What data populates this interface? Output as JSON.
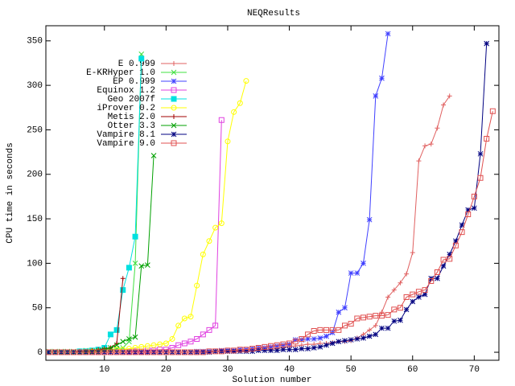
{
  "chart_data": {
    "type": "line",
    "title": "NEQResults",
    "xlabel": "Solution number",
    "ylabel": "CPU time in seconds",
    "x": [
      1,
      2,
      3,
      4,
      5,
      6,
      7,
      8,
      9,
      10,
      11,
      12,
      13,
      14,
      15,
      16,
      17,
      18,
      19,
      20,
      21,
      22,
      23,
      24,
      25,
      26,
      27,
      28,
      29,
      30,
      31,
      32,
      33,
      34,
      35,
      36,
      37,
      38,
      39,
      40,
      41,
      42,
      43,
      44,
      45,
      46,
      47,
      48,
      49,
      50,
      51,
      52,
      53,
      54,
      55,
      56,
      57,
      58,
      59,
      60,
      61,
      62,
      63,
      64,
      65,
      66,
      67,
      68,
      69,
      70,
      71,
      72,
      73
    ],
    "xlim": [
      0.5,
      74
    ],
    "xticks": [
      10,
      20,
      30,
      40,
      50,
      60,
      70
    ],
    "ylim": [
      -9,
      367
    ],
    "yticks": [
      0,
      50,
      100,
      150,
      200,
      250,
      300,
      350
    ],
    "series": [
      {
        "name": "E 0.999",
        "color": "#e06060",
        "marker": "plus",
        "values": [
          0,
          0,
          0,
          0,
          0,
          0,
          0,
          0,
          0,
          0,
          0,
          0,
          0,
          0,
          0,
          0,
          0,
          0,
          0,
          0,
          0,
          0,
          0,
          0,
          0,
          0,
          0,
          1,
          1,
          1,
          1,
          2,
          2,
          2,
          3,
          3,
          3,
          4,
          5,
          6,
          7,
          8,
          9,
          9,
          10,
          10,
          11,
          12,
          12,
          13,
          16,
          20,
          25,
          30,
          45,
          62,
          70,
          78,
          88,
          112,
          215,
          232,
          234,
          252,
          278,
          288,
          null,
          null,
          null,
          null,
          null,
          null,
          null
        ]
      },
      {
        "name": "E-KRHyper 1.0",
        "color": "#40e040",
        "marker": "cross",
        "values": [
          1,
          1,
          1,
          1,
          1,
          1,
          2,
          2,
          2,
          3,
          3,
          4,
          5,
          12,
          100,
          335,
          null,
          null,
          null,
          null,
          null,
          null,
          null,
          null,
          null,
          null,
          null,
          null,
          null,
          null,
          null,
          null,
          null,
          null,
          null,
          null,
          null,
          null,
          null,
          null,
          null,
          null,
          null,
          null,
          null,
          null,
          null,
          null,
          null,
          null,
          null,
          null,
          null,
          null,
          null,
          null,
          null,
          null,
          null,
          null,
          null,
          null,
          null,
          null,
          null,
          null,
          null,
          null,
          null,
          null,
          null,
          null,
          null
        ]
      },
      {
        "name": "EP 0.999",
        "color": "#4040ff",
        "marker": "star",
        "values": [
          0,
          0,
          0,
          0,
          0,
          0,
          0,
          0,
          0,
          0,
          0,
          0,
          0,
          0,
          0,
          0,
          0,
          0,
          0,
          0,
          0,
          0,
          0,
          0,
          1,
          1,
          1,
          1,
          2,
          2,
          2,
          3,
          3,
          4,
          5,
          5,
          6,
          7,
          8,
          9,
          14,
          14,
          15,
          15,
          16,
          18,
          22,
          45,
          50,
          89,
          89,
          100,
          149,
          288,
          308,
          358,
          null,
          null,
          null,
          null,
          null,
          null,
          null,
          null,
          null,
          null,
          null,
          null,
          null,
          null,
          null,
          null,
          null
        ]
      },
      {
        "name": "Equinox 1.2",
        "color": "#e040e0",
        "marker": "box",
        "values": [
          0,
          0,
          0,
          0,
          0,
          0,
          0,
          0,
          0,
          0,
          0,
          0,
          0,
          1,
          1,
          1,
          2,
          2,
          3,
          3,
          5,
          8,
          10,
          12,
          15,
          20,
          25,
          30,
          261,
          null,
          null,
          null,
          null,
          null,
          null,
          null,
          null,
          null,
          null,
          null,
          null,
          null,
          null,
          null,
          null,
          null,
          null,
          null,
          null,
          null,
          null,
          null,
          null,
          null,
          null,
          null,
          null,
          null,
          null,
          null,
          null,
          null,
          null,
          null,
          null,
          null,
          null,
          null,
          null,
          null,
          null,
          null,
          null
        ]
      },
      {
        "name": "Geo 2007f",
        "color": "#00e0e0",
        "marker": "fbox",
        "values": [
          0,
          0,
          0,
          0,
          0,
          1,
          1,
          2,
          3,
          5,
          20,
          25,
          70,
          95,
          130,
          330,
          null,
          null,
          null,
          null,
          null,
          null,
          null,
          null,
          null,
          null,
          null,
          null,
          null,
          null,
          null,
          null,
          null,
          null,
          null,
          null,
          null,
          null,
          null,
          null,
          null,
          null,
          null,
          null,
          null,
          null,
          null,
          null,
          null,
          null,
          null,
          null,
          null,
          null,
          null,
          null,
          null,
          null,
          null,
          null,
          null,
          null,
          null,
          null,
          null,
          null,
          null,
          null,
          null,
          null,
          null,
          null,
          null
        ]
      },
      {
        "name": "iProver 0.2",
        "color": "#ffff00",
        "marker": "circle",
        "values": [
          0,
          0,
          0,
          0,
          0,
          0,
          0,
          1,
          1,
          2,
          2,
          3,
          3,
          4,
          5,
          6,
          7,
          8,
          9,
          10,
          15,
          30,
          38,
          40,
          75,
          110,
          125,
          140,
          145,
          237,
          270,
          280,
          305,
          null,
          null,
          null,
          null,
          null,
          null,
          null,
          null,
          null,
          null,
          null,
          null,
          null,
          null,
          null,
          null,
          null,
          null,
          null,
          null,
          null,
          null,
          null,
          null,
          null,
          null,
          null,
          null,
          null,
          null,
          null,
          null,
          null,
          null,
          null,
          null,
          null,
          null,
          null,
          null
        ]
      },
      {
        "name": "Metis 2.0",
        "color": "#a00000",
        "marker": "plus",
        "values": [
          0,
          0,
          0,
          0,
          0,
          1,
          1,
          2,
          3,
          4,
          5,
          10,
          83,
          null,
          null,
          null,
          null,
          null,
          null,
          null,
          null,
          null,
          null,
          null,
          null,
          null,
          null,
          null,
          null,
          null,
          null,
          null,
          null,
          null,
          null,
          null,
          null,
          null,
          null,
          null,
          null,
          null,
          null,
          null,
          null,
          null,
          null,
          null,
          null,
          null,
          null,
          null,
          null,
          null,
          null,
          null,
          null,
          null,
          null,
          null,
          null,
          null,
          null,
          null,
          null,
          null,
          null,
          null,
          null,
          null,
          null,
          null,
          null
        ]
      },
      {
        "name": "Otter 3.3",
        "color": "#00a000",
        "marker": "cross",
        "values": [
          0,
          0,
          0,
          0,
          0,
          0,
          1,
          1,
          2,
          3,
          5,
          8,
          12,
          15,
          17,
          97,
          98,
          221,
          null,
          null,
          null,
          null,
          null,
          null,
          null,
          null,
          null,
          null,
          null,
          null,
          null,
          null,
          null,
          null,
          null,
          null,
          null,
          null,
          null,
          null,
          null,
          null,
          null,
          null,
          null,
          null,
          null,
          null,
          null,
          null,
          null,
          null,
          null,
          null,
          null,
          null,
          null,
          null,
          null,
          null,
          null,
          null,
          null,
          null,
          null,
          null,
          null,
          null,
          null,
          null,
          null,
          null,
          null
        ]
      },
      {
        "name": "Vampire 8.1",
        "color": "#000080",
        "marker": "star",
        "values": [
          0,
          0,
          0,
          0,
          0,
          0,
          0,
          0,
          0,
          0,
          0,
          0,
          0,
          0,
          0,
          0,
          0,
          0,
          0,
          0,
          0,
          0,
          0,
          0,
          0,
          0,
          0,
          1,
          1,
          1,
          1,
          1,
          1,
          1,
          2,
          2,
          2,
          2,
          3,
          3,
          3,
          4,
          4,
          5,
          6,
          8,
          10,
          12,
          13,
          14,
          15,
          16,
          18,
          20,
          27,
          27,
          35,
          36,
          48,
          57,
          62,
          65,
          83,
          83,
          97,
          110,
          125,
          143,
          160,
          162,
          223,
          347,
          null
        ]
      },
      {
        "name": "Vampire 9.0",
        "color": "#e05050",
        "marker": "box",
        "values": [
          0,
          0,
          0,
          0,
          0,
          0,
          0,
          0,
          0,
          0,
          0,
          0,
          0,
          0,
          0,
          0,
          0,
          0,
          0,
          0,
          0,
          0,
          0,
          0,
          0,
          0,
          1,
          1,
          1,
          2,
          2,
          3,
          3,
          4,
          5,
          6,
          7,
          8,
          9,
          10,
          12,
          15,
          20,
          24,
          25,
          25,
          25,
          25,
          30,
          32,
          38,
          39,
          40,
          41,
          41,
          42,
          48,
          50,
          62,
          65,
          68,
          70,
          80,
          90,
          104,
          105,
          120,
          135,
          155,
          175,
          196,
          240,
          271
        ]
      }
    ]
  }
}
